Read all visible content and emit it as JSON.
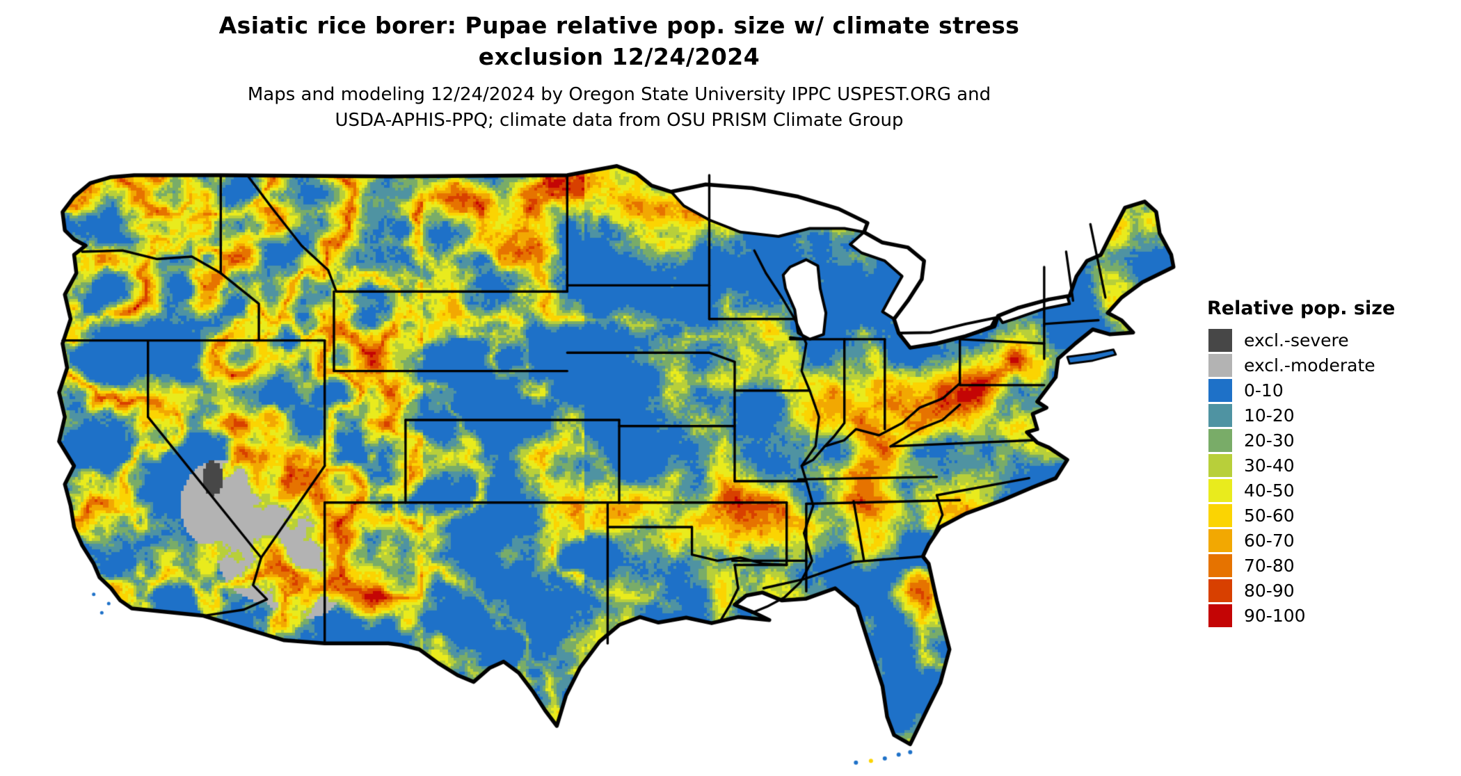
{
  "title": {
    "line1": "Asiatic rice borer: Pupae relative pop. size w/ climate stress",
    "line2": "exclusion 12/24/2024"
  },
  "subtitle": {
    "line1": "Maps and modeling 12/24/2024 by Oregon State University IPPC USPEST.ORG and",
    "line2": "USDA-APHIS-PPQ; climate data from OSU PRISM Climate Group"
  },
  "legend": {
    "title": "Relative pop. size",
    "items": [
      {
        "label": "excl.-severe",
        "color": "#474747"
      },
      {
        "label": "excl.-moderate",
        "color": "#b3b3b3"
      },
      {
        "label": "0-10",
        "color": "#1e71c8"
      },
      {
        "label": "10-20",
        "color": "#4f93a2"
      },
      {
        "label": "20-30",
        "color": "#79ac68"
      },
      {
        "label": "30-40",
        "color": "#b8cf3a"
      },
      {
        "label": "40-50",
        "color": "#e9eb1d"
      },
      {
        "label": "50-60",
        "color": "#fbd402"
      },
      {
        "label": "60-70",
        "color": "#f2a802"
      },
      {
        "label": "70-80",
        "color": "#e67300"
      },
      {
        "label": "80-90",
        "color": "#d84000"
      },
      {
        "label": "90-100",
        "color": "#c40505"
      }
    ]
  },
  "map": {
    "area_label": "contiguous-united-states",
    "water_color": "#ffffff",
    "boundary_color": "#000000"
  }
}
